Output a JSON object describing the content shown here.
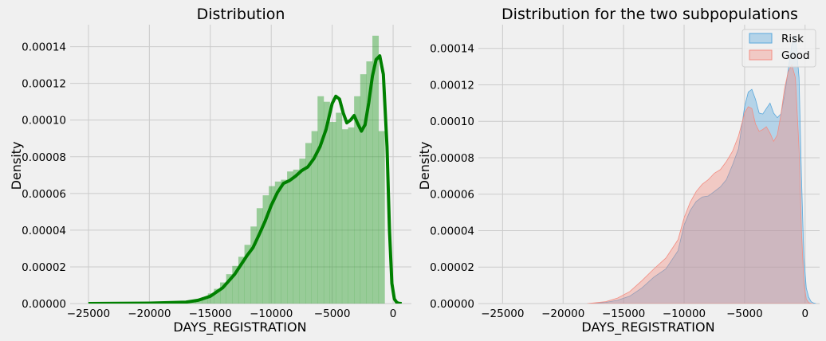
{
  "chart_data": [
    {
      "type": "area",
      "title": "Distribution",
      "xlabel": "DAYS_REGISTRATION",
      "ylabel": "Density",
      "xlim": [
        -26500,
        1500
      ],
      "ylim": [
        0,
        0.000152
      ],
      "xticks": [
        -25000,
        -20000,
        -15000,
        -10000,
        -5000,
        0
      ],
      "xtick_labels": [
        "−25000",
        "−20000",
        "−15000",
        "−10000",
        "−5000",
        "0"
      ],
      "yticks": [
        0,
        2e-05,
        4e-05,
        6e-05,
        8e-05,
        0.0001,
        0.00012,
        0.00014
      ],
      "ytick_labels": [
        "0.00000",
        "0.00002",
        "0.00004",
        "0.00006",
        "0.00008",
        "0.00010",
        "0.00012",
        "0.00014"
      ],
      "grid": true,
      "histogram": {
        "color": "#2ca02c",
        "bin_start": -24700,
        "bin_width": 500,
        "values": [
          0,
          0,
          0,
          0,
          0,
          0,
          0,
          0,
          0,
          0,
          0,
          0,
          0,
          0,
          3e-07,
          6e-07,
          1.2e-06,
          2.2e-06,
          3.5e-06,
          5.5e-06,
          8e-06,
          1.15e-05,
          1.6e-05,
          2.05e-05,
          2.55e-05,
          3.2e-05,
          4.2e-05,
          5.2e-05,
          5.9e-05,
          6.4e-05,
          6.65e-05,
          6.75e-05,
          7.2e-05,
          7.3e-05,
          7.9e-05,
          8.75e-05,
          9.4e-05,
          0.000113,
          0.00011,
          9.9e-05,
          0.000104,
          9.5e-05,
          9.6e-05,
          0.000113,
          0.000125,
          0.000132,
          0.000146,
          9.4e-05
        ]
      },
      "kde": {
        "color": "#008000",
        "x": [
          -25000,
          -20000,
          -17000,
          -16000,
          -15000,
          -14000,
          -13000,
          -12500,
          -12000,
          -11500,
          -11000,
          -10500,
          -10000,
          -9500,
          -9000,
          -8500,
          -8000,
          -7500,
          -7000,
          -6500,
          -6000,
          -5500,
          -5000,
          -4700,
          -4400,
          -4100,
          -3800,
          -3500,
          -3200,
          -2900,
          -2600,
          -2300,
          -2000,
          -1700,
          -1400,
          -1100,
          -800,
          -500,
          -300,
          -100,
          100,
          300,
          500,
          700
        ],
        "y": [
          0,
          2e-07,
          8e-07,
          1.8e-06,
          4e-06,
          8.5e-06,
          1.6e-05,
          2.1e-05,
          2.6e-05,
          3.05e-05,
          3.75e-05,
          4.5e-05,
          5.35e-05,
          6.05e-05,
          6.55e-05,
          6.7e-05,
          6.95e-05,
          7.25e-05,
          7.45e-05,
          7.9e-05,
          8.55e-05,
          9.5e-05,
          0.000109,
          0.000113,
          0.0001115,
          0.000104,
          9.85e-05,
          0.0001,
          0.0001025,
          9.8e-05,
          9.4e-05,
          9.75e-05,
          0.0001095,
          0.000124,
          0.000133,
          0.000135,
          0.000125,
          8.55e-05,
          4e-05,
          1.1e-05,
          2.5e-06,
          5e-07,
          1e-07,
          0
        ]
      }
    },
    {
      "type": "area",
      "title": "Distribution for the two subpopulations",
      "xlabel": "DAYS_REGISTRATION",
      "ylabel": "Density",
      "xlim": [
        -27000,
        1200
      ],
      "ylim": [
        0,
        0.000153
      ],
      "xticks": [
        -25000,
        -20000,
        -15000,
        -10000,
        -5000,
        0
      ],
      "xtick_labels": [
        "−25000",
        "−20000",
        "−15000",
        "−10000",
        "−5000",
        "0"
      ],
      "yticks": [
        0,
        2e-05,
        4e-05,
        6e-05,
        8e-05,
        0.0001,
        0.00012,
        0.00014
      ],
      "ytick_labels": [
        "0.00000",
        "0.00002",
        "0.00004",
        "0.00006",
        "0.00008",
        "0.00010",
        "0.00012",
        "0.00014"
      ],
      "grid": true,
      "legend_position": "top-right",
      "series": [
        {
          "name": "Risk",
          "color": "#5aa8db",
          "x": [
            -18000,
            -16500,
            -15500,
            -14500,
            -13500,
            -12500,
            -11500,
            -10500,
            -10000,
            -9500,
            -9000,
            -8500,
            -8000,
            -7500,
            -7000,
            -6500,
            -6000,
            -5500,
            -5000,
            -4700,
            -4400,
            -4100,
            -3800,
            -3500,
            -3200,
            -2900,
            -2600,
            -2300,
            -2000,
            -1700,
            -1400,
            -1100,
            -800,
            -500,
            -300,
            -100,
            100,
            300,
            500,
            700,
            900
          ],
          "y": [
            0,
            6e-07,
            1.8e-06,
            4e-06,
            8.5e-06,
            1.45e-05,
            1.9e-05,
            2.9e-05,
            4.3e-05,
            5.1e-05,
            5.6e-05,
            5.85e-05,
            5.9e-05,
            6.15e-05,
            6.4e-05,
            6.8e-05,
            7.6e-05,
            8.5e-05,
            0.000108,
            0.000116,
            0.0001175,
            0.000112,
            0.0001045,
            0.000104,
            0.000107,
            0.00011,
            0.0001045,
            0.000102,
            0.000104,
            0.000114,
            0.000128,
            0.000142,
            0.000147,
            0.000124,
            7e-05,
            2.5e-05,
            8.5e-06,
            3.5e-06,
            1e-06,
            3e-07,
            0
          ]
        },
        {
          "name": "Good",
          "color": "#f28e83",
          "x": [
            -18000,
            -16500,
            -15500,
            -14500,
            -13500,
            -12500,
            -11500,
            -10500,
            -10000,
            -9500,
            -9000,
            -8500,
            -8000,
            -7500,
            -7000,
            -6500,
            -6000,
            -5500,
            -5000,
            -4700,
            -4400,
            -4100,
            -3800,
            -3500,
            -3200,
            -2900,
            -2600,
            -2300,
            -2000,
            -1700,
            -1400,
            -1100,
            -800,
            -500,
            -300,
            -100,
            100,
            300,
            500,
            700
          ],
          "y": [
            0,
            1e-06,
            3e-06,
            6.5e-06,
            1.25e-05,
            1.9e-05,
            2.5e-05,
            3.5e-05,
            4.7e-05,
            5.55e-05,
            6.15e-05,
            6.55e-05,
            6.8e-05,
            7.15e-05,
            7.35e-05,
            7.8e-05,
            8.35e-05,
            9.2e-05,
            0.0001045,
            0.000108,
            0.000107,
            9.85e-05,
            9.45e-05,
            9.55e-05,
            9.7e-05,
            9.35e-05,
            8.9e-05,
            9.25e-05,
            0.0001035,
            0.000118,
            0.000127,
            0.000131,
            0.000124,
            8.5e-05,
            4e-05,
            1.1e-05,
            2.5e-06,
            5e-07,
            1e-07,
            0
          ]
        }
      ]
    }
  ]
}
